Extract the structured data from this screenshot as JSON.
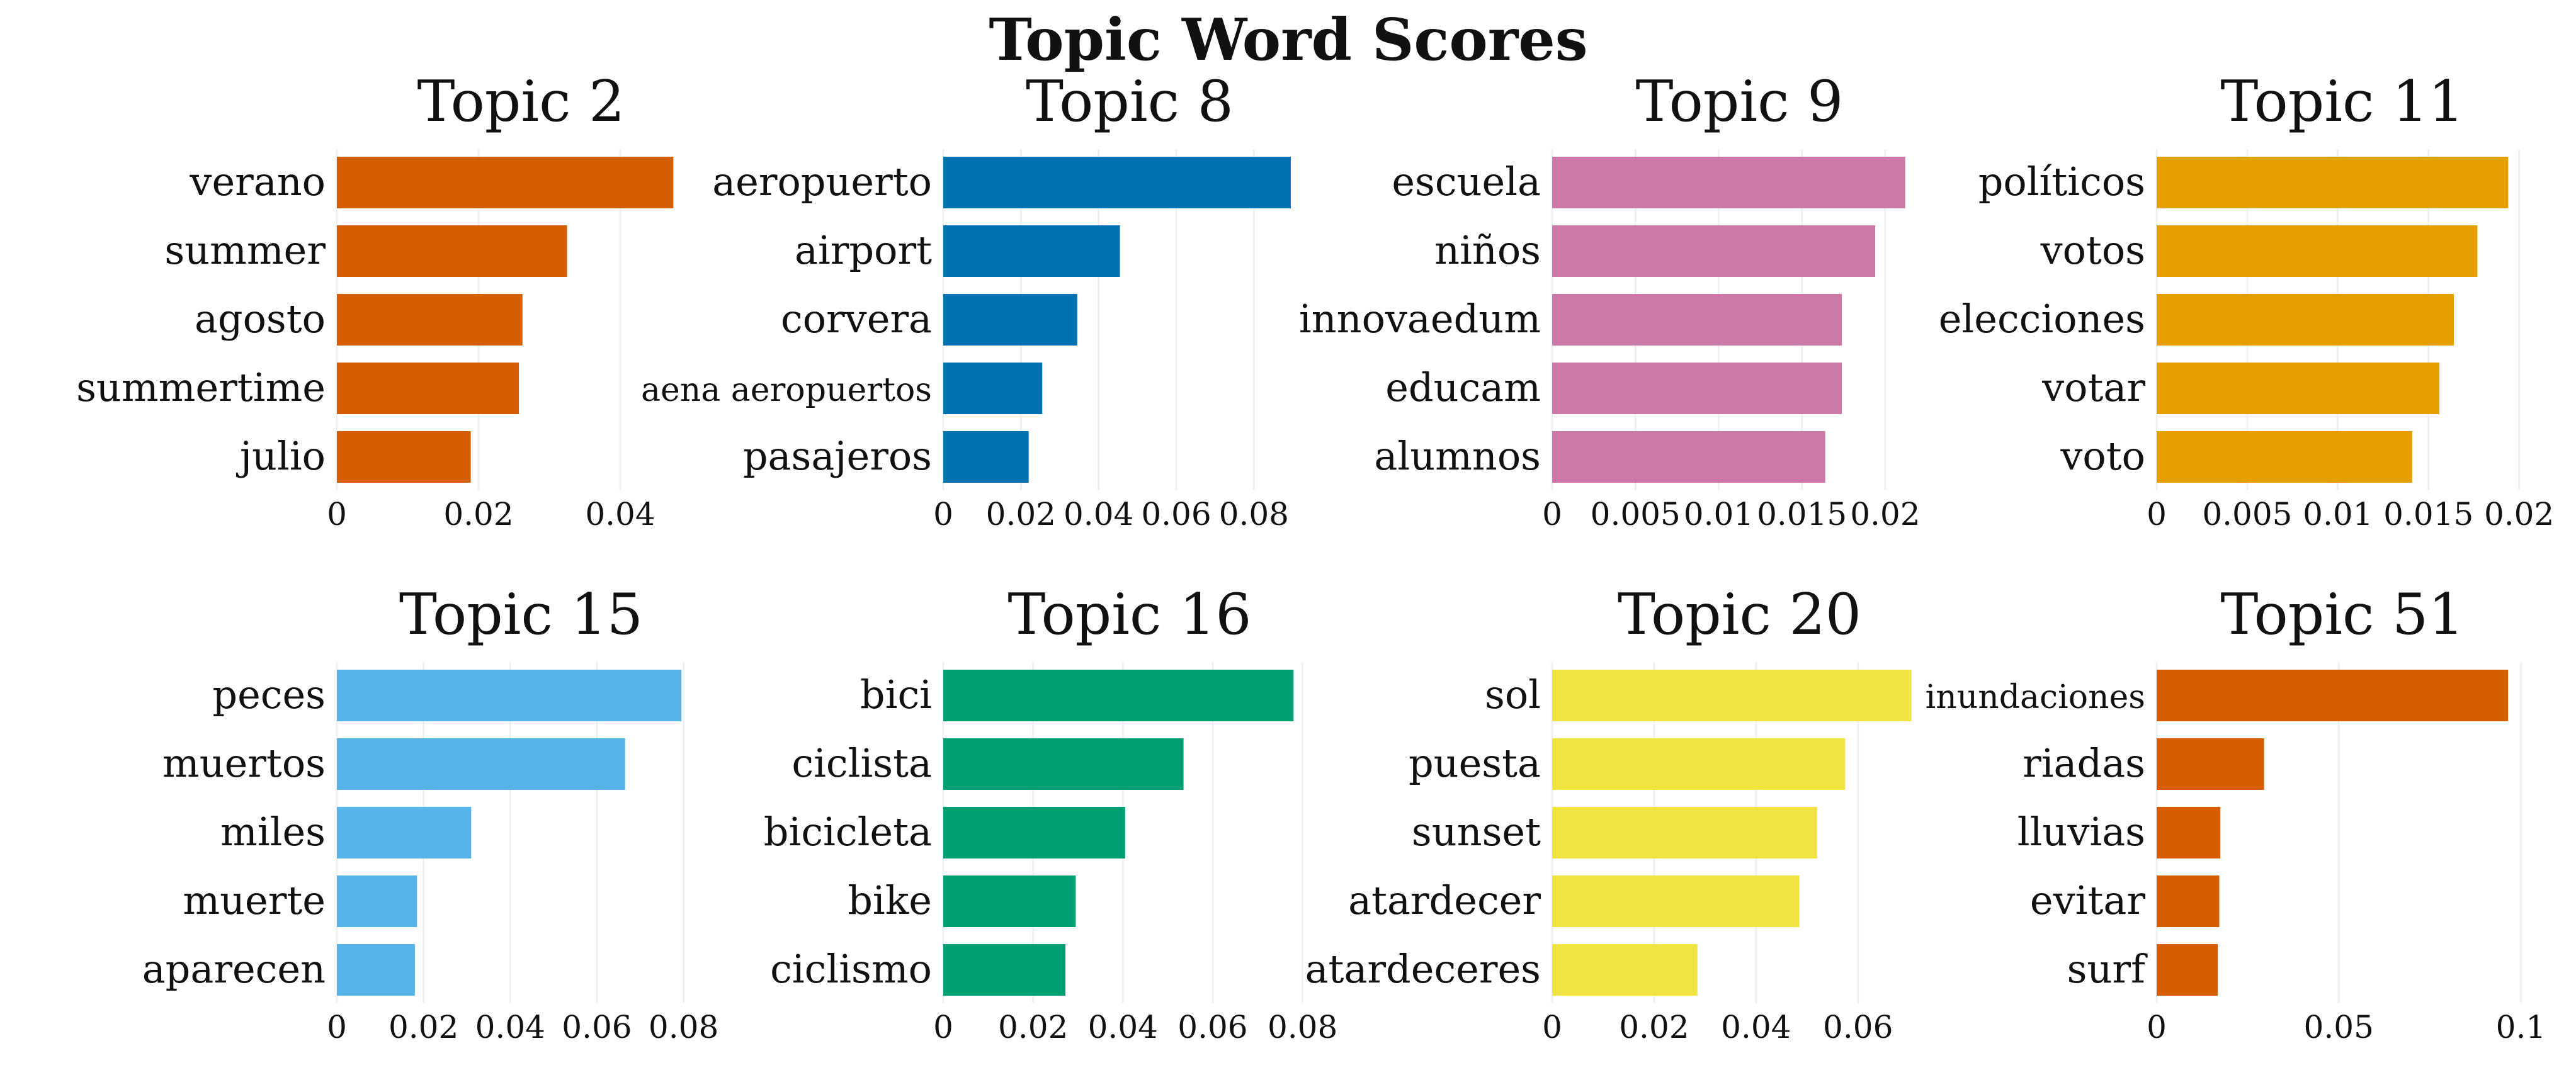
{
  "title": "Topic Word Scores",
  "chart_data": [
    {
      "type": "bar",
      "orientation": "horizontal",
      "title": "Topic 2",
      "color": "#d55e00",
      "categories": [
        "verano",
        "summer",
        "agosto",
        "summertime",
        "julio"
      ],
      "values": [
        0.0475,
        0.0325,
        0.0262,
        0.0257,
        0.0189
      ],
      "xlim": [
        0,
        0.052
      ],
      "xticks": [
        0,
        0.02,
        0.04
      ],
      "xtick_labels": [
        "0",
        "0.02",
        "0.04"
      ],
      "grid": true
    },
    {
      "type": "bar",
      "orientation": "horizontal",
      "title": "Topic 8",
      "color": "#0072b2",
      "categories": [
        "aeropuerto",
        "airport",
        "corvera",
        "aena aeropuertos",
        "pasajeros"
      ],
      "values": [
        0.0895,
        0.0455,
        0.0345,
        0.0255,
        0.022
      ],
      "xlim": [
        0,
        0.096
      ],
      "xticks": [
        0,
        0.02,
        0.04,
        0.06,
        0.08
      ],
      "xtick_labels": [
        "0",
        "0.02",
        "0.04",
        "0.06",
        "0.08"
      ],
      "grid": true
    },
    {
      "type": "bar",
      "orientation": "horizontal",
      "title": "Topic 9",
      "color": "#cc79a7",
      "categories": [
        "escuela",
        "niños",
        "innovaedum",
        "educam",
        "alumnos"
      ],
      "values": [
        0.0212,
        0.0194,
        0.0174,
        0.0174,
        0.0164
      ],
      "xlim": [
        0,
        0.0225
      ],
      "xticks": [
        0,
        0.005,
        0.01,
        0.015,
        0.02
      ],
      "xtick_labels": [
        "0",
        "0.005",
        "0.01",
        "0.015",
        "0.02"
      ],
      "grid": true
    },
    {
      "type": "bar",
      "orientation": "horizontal",
      "title": "Topic 11",
      "color": "#e69f00",
      "categories": [
        "políticos",
        "votos",
        "elecciones",
        "votar",
        "voto"
      ],
      "values": [
        0.0194,
        0.0177,
        0.0164,
        0.0156,
        0.0141
      ],
      "xlim": [
        0,
        0.0205
      ],
      "xticks": [
        0,
        0.005,
        0.01,
        0.015,
        0.02
      ],
      "xtick_labels": [
        "0",
        "0.005",
        "0.01",
        "0.015",
        "0.02"
      ],
      "grid": true
    },
    {
      "type": "bar",
      "orientation": "horizontal",
      "title": "Topic 15",
      "color": "#56b4e9",
      "categories": [
        "peces",
        "muertos",
        "miles",
        "muerte",
        "aparecen"
      ],
      "values": [
        0.0795,
        0.0665,
        0.031,
        0.0185,
        0.018
      ],
      "xlim": [
        0,
        0.085
      ],
      "xticks": [
        0,
        0.02,
        0.04,
        0.06,
        0.08
      ],
      "xtick_labels": [
        "0",
        "0.02",
        "0.04",
        "0.06",
        "0.08"
      ],
      "grid": true
    },
    {
      "type": "bar",
      "orientation": "horizontal",
      "title": "Topic 16",
      "color": "#009e73",
      "categories": [
        "bici",
        "ciclista",
        "bicicleta",
        "bike",
        "ciclismo"
      ],
      "values": [
        0.078,
        0.0535,
        0.0405,
        0.0295,
        0.0272
      ],
      "xlim": [
        0,
        0.083
      ],
      "xticks": [
        0,
        0.02,
        0.04,
        0.06,
        0.08
      ],
      "xtick_labels": [
        "0",
        "0.02",
        "0.04",
        "0.06",
        "0.08"
      ],
      "grid": true
    },
    {
      "type": "bar",
      "orientation": "horizontal",
      "title": "Topic 20",
      "color": "#f0e442",
      "categories": [
        "sol",
        "puesta",
        "sunset",
        "atardecer",
        "atardeceres"
      ],
      "values": [
        0.0705,
        0.0575,
        0.052,
        0.0485,
        0.0285
      ],
      "xlim": [
        0,
        0.0735
      ],
      "xticks": [
        0,
        0.02,
        0.04,
        0.06
      ],
      "xtick_labels": [
        "0",
        "0.02",
        "0.04",
        "0.06"
      ],
      "grid": true
    },
    {
      "type": "bar",
      "orientation": "horizontal",
      "title": "Topic 51",
      "color": "#d55e00",
      "categories": [
        "inundaciones",
        "riadas",
        "lluvias",
        "evitar",
        "surf"
      ],
      "values": [
        0.0965,
        0.0295,
        0.0175,
        0.0172,
        0.0168
      ],
      "xlim": [
        0,
        0.102
      ],
      "xticks": [
        0,
        0.05,
        0.1
      ],
      "xtick_labels": [
        "0",
        "0.05",
        "0.1"
      ],
      "grid": true
    }
  ]
}
